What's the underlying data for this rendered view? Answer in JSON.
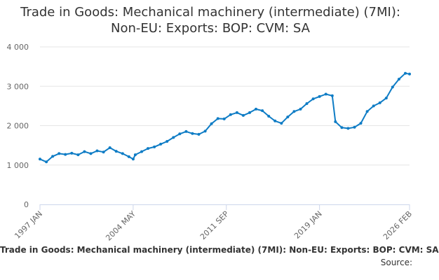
{
  "chart_data": {
    "type": "line",
    "title_line1": "Trade in Goods: Mechanical machinery (intermediate) (7MI):",
    "title_line2": "Non-EU: Exports: BOP: CVM: SA",
    "legend_text": "Trade in Goods: Mechanical machinery (intermediate) (7MI): Non-EU: Exports: BOP: CVM: SA",
    "source_text": "Source:",
    "ylim": [
      0,
      4000
    ],
    "y_ticks": [
      {
        "value": 0,
        "label": "0"
      },
      {
        "value": 1000,
        "label": "1 000"
      },
      {
        "value": 2000,
        "label": "2 000"
      },
      {
        "value": 3000,
        "label": "3 000"
      },
      {
        "value": 4000,
        "label": "4 000"
      }
    ],
    "x_ticks": [
      {
        "value": "1997-01",
        "label": "1997 JAN"
      },
      {
        "value": "2004-05",
        "label": "2004 MAY"
      },
      {
        "value": "2011-09",
        "label": "2011 SEP"
      },
      {
        "value": "2019-01",
        "label": "2019 JAN"
      },
      {
        "value": "2026-02",
        "label": "2026 FEB"
      }
    ],
    "xlim": [
      "1997-01",
      "2026-02"
    ],
    "grid": true,
    "line_color": "#0e7cc5",
    "series": [
      {
        "points": [
          [
            "1997-01",
            1150
          ],
          [
            "1997-07",
            1080
          ],
          [
            "1998-01",
            1220
          ],
          [
            "1998-07",
            1290
          ],
          [
            "1999-01",
            1270
          ],
          [
            "1999-07",
            1300
          ],
          [
            "2000-01",
            1260
          ],
          [
            "2000-07",
            1340
          ],
          [
            "2001-01",
            1290
          ],
          [
            "2001-07",
            1360
          ],
          [
            "2002-01",
            1330
          ],
          [
            "2002-07",
            1440
          ],
          [
            "2003-01",
            1350
          ],
          [
            "2003-07",
            1290
          ],
          [
            "2004-01",
            1210
          ],
          [
            "2004-05",
            1150
          ],
          [
            "2004-07",
            1260
          ],
          [
            "2005-01",
            1340
          ],
          [
            "2005-07",
            1420
          ],
          [
            "2006-01",
            1460
          ],
          [
            "2006-07",
            1530
          ],
          [
            "2007-01",
            1600
          ],
          [
            "2007-07",
            1700
          ],
          [
            "2008-01",
            1790
          ],
          [
            "2008-07",
            1850
          ],
          [
            "2009-01",
            1800
          ],
          [
            "2009-07",
            1780
          ],
          [
            "2010-01",
            1860
          ],
          [
            "2010-07",
            2050
          ],
          [
            "2011-01",
            2180
          ],
          [
            "2011-07",
            2170
          ],
          [
            "2012-01",
            2280
          ],
          [
            "2012-07",
            2330
          ],
          [
            "2013-01",
            2260
          ],
          [
            "2013-07",
            2330
          ],
          [
            "2014-01",
            2420
          ],
          [
            "2014-07",
            2380
          ],
          [
            "2015-01",
            2240
          ],
          [
            "2015-07",
            2120
          ],
          [
            "2016-01",
            2060
          ],
          [
            "2016-07",
            2220
          ],
          [
            "2017-01",
            2360
          ],
          [
            "2017-07",
            2420
          ],
          [
            "2018-01",
            2560
          ],
          [
            "2018-07",
            2680
          ],
          [
            "2019-01",
            2740
          ],
          [
            "2019-07",
            2800
          ],
          [
            "2020-01",
            2760
          ],
          [
            "2020-04",
            2100
          ],
          [
            "2020-10",
            1950
          ],
          [
            "2021-04",
            1930
          ],
          [
            "2021-10",
            1960
          ],
          [
            "2022-04",
            2060
          ],
          [
            "2022-10",
            2360
          ],
          [
            "2023-04",
            2500
          ],
          [
            "2023-10",
            2580
          ],
          [
            "2024-04",
            2700
          ],
          [
            "2024-10",
            2980
          ],
          [
            "2025-04",
            3180
          ],
          [
            "2025-10",
            3330
          ],
          [
            "2026-02",
            3310
          ]
        ]
      }
    ]
  }
}
